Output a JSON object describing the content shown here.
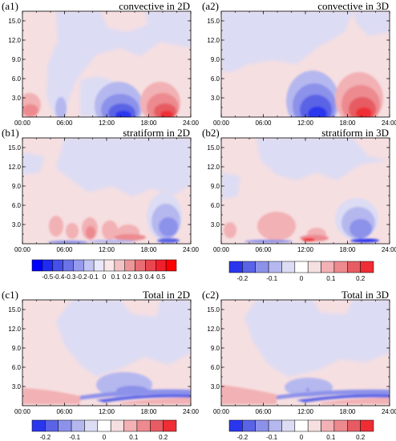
{
  "figure": {
    "panels": [
      {
        "id": "a1",
        "label": "(a1)",
        "title": "convective in 2D"
      },
      {
        "id": "a2",
        "label": "(a2)",
        "title": "convective in 3D"
      },
      {
        "id": "b1",
        "label": "(b1)",
        "title": "stratiform in 2D"
      },
      {
        "id": "b2",
        "label": "(b2)",
        "title": "stratiform in 3D"
      },
      {
        "id": "c1",
        "label": "(c1)",
        "title": "Total in 2D"
      },
      {
        "id": "c2",
        "label": "(c2)",
        "title": "Total in 3D"
      }
    ],
    "x_tick_labels": [
      "00:00",
      "06:00",
      "12:00",
      "18:00",
      "24:00"
    ],
    "y_tick_labels": [
      "3.0",
      "6.0",
      "9.0",
      "12.0",
      "15.0"
    ],
    "colorbars": [
      {
        "id": "cb-b1",
        "labels": [
          "-0.5",
          "-0.4",
          "-0.3",
          "-0.2",
          "-0.1",
          "0",
          "0.1",
          "0.2",
          "0.3",
          "0.4",
          "0.5"
        ]
      },
      {
        "id": "cb-b2",
        "labels": [
          "-0.2",
          "-0.1",
          "0",
          "0.1",
          "0.2"
        ]
      },
      {
        "id": "cb-c1",
        "labels": [
          "-0.2",
          "-0.1",
          "0",
          "0.1",
          "0.2"
        ]
      },
      {
        "id": "cb-c2",
        "labels": [
          "-0.2",
          "-0.1",
          "0",
          "0.1",
          "0.2"
        ]
      }
    ],
    "colors": {
      "neg_strong": "#0000ff",
      "neutral": "#ffffff",
      "pos_strong": "#ff0000"
    }
  },
  "chart_data": [
    {
      "type": "heatmap",
      "panel": "a1",
      "x": [
        "00:00",
        "06:00",
        "12:00",
        "18:00",
        "24:00"
      ],
      "y_ticks": [
        3,
        6,
        9,
        12,
        15
      ],
      "ylim": [
        0,
        16.5
      ],
      "clim": [
        -0.5,
        0.5
      ],
      "features": [
        {
          "kind": "positive background",
          "value": 0.05
        },
        {
          "kind": "negative region",
          "x_range": [
            "05:00",
            "13:00"
          ],
          "y_range": [
            3,
            16
          ],
          "value": -0.05
        },
        {
          "kind": "negative core",
          "x_center": "14:00",
          "y_center": 0.6,
          "value": -0.45
        },
        {
          "kind": "positive core",
          "x_center": "20:30",
          "y_center": 0.6,
          "value": 0.45
        },
        {
          "kind": "positive core",
          "x_center": "00:30",
          "y_center": 0.8,
          "value": 0.25
        }
      ]
    },
    {
      "type": "heatmap",
      "panel": "a2",
      "x": [
        "00:00",
        "06:00",
        "12:00",
        "18:00",
        "24:00"
      ],
      "y_ticks": [
        3,
        6,
        9,
        12,
        15
      ],
      "ylim": [
        0,
        16.5
      ],
      "clim": [
        -0.2,
        0.2
      ],
      "features": [
        {
          "kind": "negative region",
          "x_range": [
            "00:00",
            "12:00"
          ],
          "y_range": [
            6,
            16
          ],
          "value": -0.05
        },
        {
          "kind": "negative core",
          "x_center": "15:00",
          "y_center": 0.8,
          "value": -0.2
        },
        {
          "kind": "positive core",
          "x_center": "20:30",
          "y_center": 0.8,
          "value": 0.2
        }
      ]
    },
    {
      "type": "heatmap",
      "panel": "b1",
      "x": [
        "00:00",
        "06:00",
        "12:00",
        "18:00",
        "24:00"
      ],
      "y_ticks": [
        3,
        6,
        9,
        12,
        15
      ],
      "ylim": [
        0,
        16.5
      ],
      "clim": [
        -0.5,
        0.5
      ],
      "features": [
        {
          "kind": "negative region",
          "x_range": [
            "04:00",
            "20:00"
          ],
          "y_range": [
            6,
            16
          ],
          "value": -0.05
        },
        {
          "kind": "positive cells",
          "x_range": [
            "06:00",
            "12:00"
          ],
          "y_range": [
            0,
            4
          ],
          "value": 0.2
        },
        {
          "kind": "negative core",
          "x_center": "20:30",
          "y_center": 2.5,
          "value": -0.3
        },
        {
          "kind": "near-surface positive",
          "x_center": "15:00",
          "y_center": 0.3,
          "value": 0.3
        }
      ]
    },
    {
      "type": "heatmap",
      "panel": "b2",
      "x": [
        "00:00",
        "06:00",
        "12:00",
        "18:00",
        "24:00"
      ],
      "y_ticks": [
        3,
        6,
        9,
        12,
        15
      ],
      "ylim": [
        0,
        16.5
      ],
      "clim": [
        -0.2,
        0.2
      ],
      "features": [
        {
          "kind": "negative region",
          "x_range": [
            "04:00",
            "14:00"
          ],
          "y_range": [
            9,
            16
          ],
          "value": -0.05
        },
        {
          "kind": "positive cell",
          "x_center": "09:00",
          "y_center": 2.5,
          "value": 0.12
        },
        {
          "kind": "negative core",
          "x_center": "21:00",
          "y_center": 2.5,
          "value": -0.15
        },
        {
          "kind": "near-surface positive",
          "x_center": "15:00",
          "y_center": 0.4,
          "value": 0.2
        }
      ]
    },
    {
      "type": "heatmap",
      "panel": "c1",
      "x": [
        "00:00",
        "06:00",
        "12:00",
        "18:00",
        "24:00"
      ],
      "y_ticks": [
        3,
        6,
        9,
        12,
        15
      ],
      "ylim": [
        0,
        16.5
      ],
      "clim": [
        -0.2,
        0.2
      ],
      "features": [
        {
          "kind": "negative region",
          "x_range": [
            "06:00",
            "22:00"
          ],
          "y_range": [
            2,
            14
          ],
          "value": -0.05
        },
        {
          "kind": "negative layer",
          "x_range": [
            "09:00",
            "24:00"
          ],
          "y_range": [
            0.2,
            1.5
          ],
          "value": -0.15
        },
        {
          "kind": "positive layer",
          "x_range": [
            "00:00",
            "24:00"
          ],
          "y_range": [
            0,
            2
          ],
          "value": 0.1
        }
      ]
    },
    {
      "type": "heatmap",
      "panel": "c2",
      "x": [
        "00:00",
        "06:00",
        "12:00",
        "18:00",
        "24:00"
      ],
      "y_ticks": [
        3,
        6,
        9,
        12,
        15
      ],
      "ylim": [
        0,
        16.5
      ],
      "clim": [
        -0.2,
        0.2
      ],
      "features": [
        {
          "kind": "negative region",
          "x_range": [
            "04:00",
            "22:00"
          ],
          "y_range": [
            2,
            14
          ],
          "value": -0.05
        },
        {
          "kind": "negative layer",
          "x_range": [
            "08:00",
            "24:00"
          ],
          "y_range": [
            0.2,
            1.5
          ],
          "value": -0.15
        },
        {
          "kind": "positive layer",
          "x_range": [
            "00:00",
            "24:00"
          ],
          "y_range": [
            0,
            2.5
          ],
          "value": 0.1
        }
      ]
    }
  ]
}
